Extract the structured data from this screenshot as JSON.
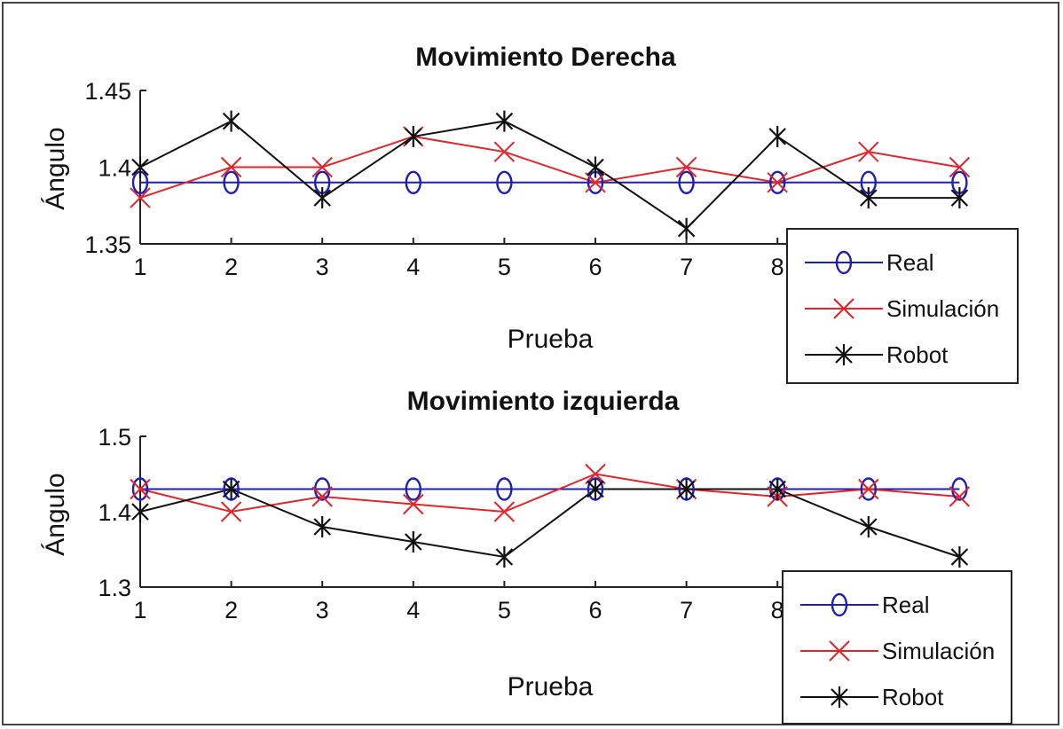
{
  "chart_data": [
    {
      "type": "line",
      "title": "Movimiento Derecha",
      "xlabel": "Prueba",
      "ylabel": "Ángulo",
      "x": [
        1,
        2,
        3,
        4,
        5,
        6,
        7,
        8,
        9,
        10
      ],
      "xticks": [
        "1",
        "2",
        "3",
        "4",
        "5",
        "6",
        "7",
        "8"
      ],
      "ylim": [
        1.35,
        1.45
      ],
      "yticks": [
        "1.35",
        "1.4",
        "1.45"
      ],
      "grid": false,
      "legend_position": "lower right (outside overlap)",
      "series": [
        {
          "name": "Real",
          "color": "#1f1fb4",
          "marker": "o",
          "values": [
            1.39,
            1.39,
            1.39,
            1.39,
            1.39,
            1.39,
            1.39,
            1.39,
            1.39,
            1.39
          ]
        },
        {
          "name": "Simulación",
          "color": "#e0262b",
          "marker": "x",
          "values": [
            1.38,
            1.4,
            1.4,
            1.42,
            1.41,
            1.39,
            1.4,
            1.39,
            1.41,
            1.4
          ]
        },
        {
          "name": "Robot",
          "color": "#111111",
          "marker": "*",
          "values": [
            1.4,
            1.43,
            1.38,
            1.42,
            1.43,
            1.4,
            1.36,
            1.42,
            1.38,
            1.38
          ]
        }
      ]
    },
    {
      "type": "line",
      "title": "Movimiento izquierda",
      "xlabel": "Prueba",
      "ylabel": "Ángulo",
      "x": [
        1,
        2,
        3,
        4,
        5,
        6,
        7,
        8,
        9,
        10
      ],
      "xticks": [
        "1",
        "2",
        "3",
        "4",
        "5",
        "6",
        "7",
        "8"
      ],
      "ylim": [
        1.3,
        1.5
      ],
      "yticks": [
        "1.3",
        "1.4",
        "1.5"
      ],
      "grid": false,
      "legend_position": "lower right (outside overlap)",
      "series": [
        {
          "name": "Real",
          "color": "#1f1fb4",
          "marker": "o",
          "values": [
            1.43,
            1.43,
            1.43,
            1.43,
            1.43,
            1.43,
            1.43,
            1.43,
            1.43,
            1.43
          ]
        },
        {
          "name": "Simulación",
          "color": "#e0262b",
          "marker": "x",
          "values": [
            1.43,
            1.4,
            1.42,
            1.41,
            1.4,
            1.45,
            1.43,
            1.42,
            1.43,
            1.42
          ]
        },
        {
          "name": "Robot",
          "color": "#111111",
          "marker": "*",
          "values": [
            1.4,
            1.43,
            1.38,
            1.36,
            1.34,
            1.43,
            1.43,
            1.43,
            1.38,
            1.34
          ]
        }
      ]
    }
  ],
  "plots": [
    {
      "title": "Movimiento Derecha",
      "xlabel": "Prueba",
      "ylabel": "Ángulo",
      "legend": [
        "Real",
        "Simulación",
        "Robot"
      ]
    },
    {
      "title": "Movimiento izquierda",
      "xlabel": "Prueba",
      "ylabel": "Ángulo",
      "legend": [
        "Real",
        "Simulación",
        "Robot"
      ]
    }
  ]
}
